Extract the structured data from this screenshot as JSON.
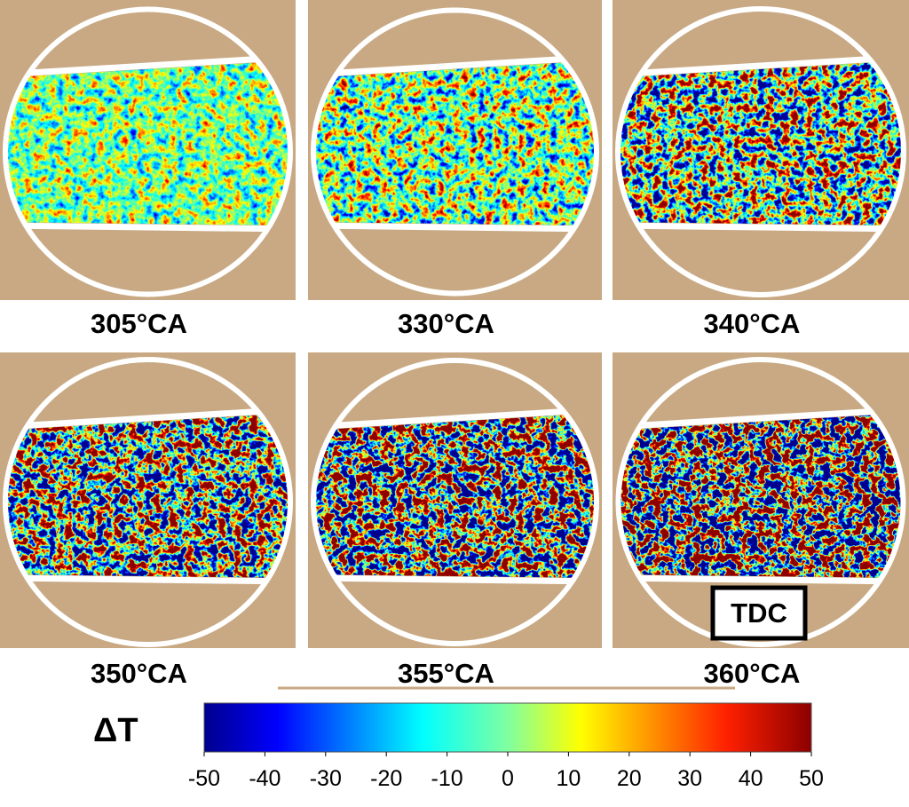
{
  "panels": [
    {
      "label": "305°CA"
    },
    {
      "label": "330°CA"
    },
    {
      "label": "340°CA"
    },
    {
      "label": "350°CA"
    },
    {
      "label": "355°CA"
    },
    {
      "label": "360°CA",
      "badge": "TDC"
    }
  ],
  "colorbar": {
    "label": "ΔT",
    "ticks": [
      -50,
      -40,
      -30,
      -20,
      -10,
      0,
      10,
      20,
      30,
      40,
      50
    ]
  }
}
